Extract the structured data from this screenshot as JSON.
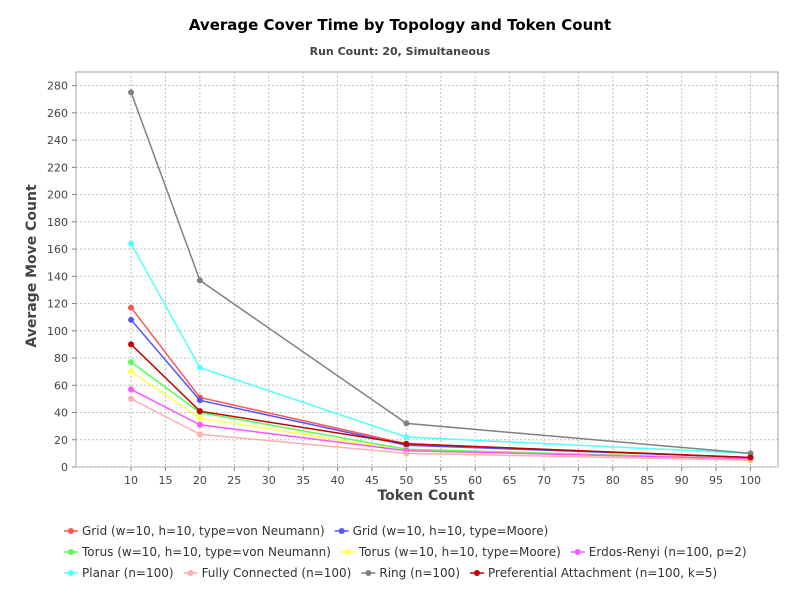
{
  "chart_data": {
    "type": "line",
    "title": "Average Cover Time by Topology and Token Count",
    "subtitle": "Run Count: 20, Simultaneous",
    "xlabel": "Token Count",
    "ylabel": "Average Move Count",
    "xlim": [
      2,
      104
    ],
    "ylim": [
      0,
      290
    ],
    "xticks": [
      10,
      15,
      20,
      25,
      30,
      35,
      40,
      45,
      50,
      55,
      60,
      65,
      70,
      75,
      80,
      85,
      90,
      95,
      100
    ],
    "yticks": [
      0,
      20,
      40,
      60,
      80,
      100,
      120,
      140,
      160,
      180,
      200,
      220,
      240,
      260,
      280
    ],
    "grid": true,
    "legend_position": "bottom",
    "x": [
      10,
      20,
      50,
      100
    ],
    "series": [
      {
        "name": "Grid (w=10, h=10, type=von Neumann)",
        "color": "#ff5555",
        "values": [
          117,
          51,
          17,
          7
        ]
      },
      {
        "name": "Grid (w=10, h=10, type=Moore)",
        "color": "#5555ff",
        "values": [
          108,
          49,
          16,
          7
        ]
      },
      {
        "name": "Torus (w=10, h=10, type=von Neumann)",
        "color": "#55ff55",
        "values": [
          77,
          40,
          13,
          6
        ]
      },
      {
        "name": "Torus (w=10, h=10, type=Moore)",
        "color": "#ffff55",
        "values": [
          70,
          36,
          12,
          6
        ]
      },
      {
        "name": "Erdos-Renyi (n=100, p=2)",
        "color": "#ff55ff",
        "values": [
          57,
          31,
          12,
          6
        ]
      },
      {
        "name": "Planar (n=100)",
        "color": "#55ffff",
        "values": [
          164,
          73,
          22,
          10
        ]
      },
      {
        "name": "Fully Connected (n=100)",
        "color": "#ffafaf",
        "values": [
          50,
          24,
          10,
          5
        ]
      },
      {
        "name": "Ring (n=100)",
        "color": "#808080",
        "values": [
          275,
          137,
          32,
          10
        ]
      },
      {
        "name": "Preferential Attachment (n=100, k=5)",
        "color": "#c00000",
        "values": [
          90,
          41,
          17,
          7
        ]
      }
    ]
  }
}
